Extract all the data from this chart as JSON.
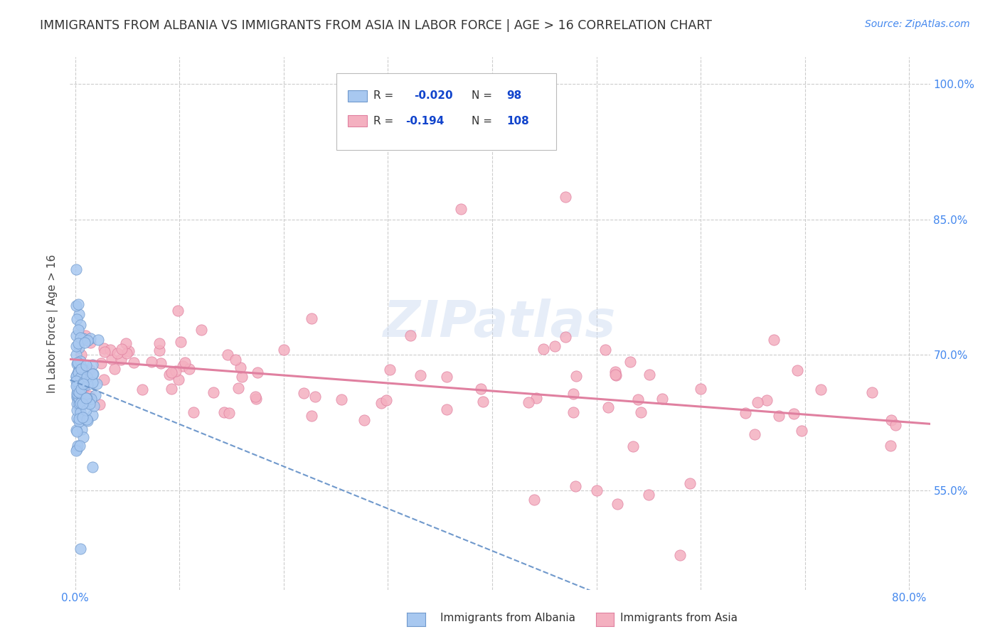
{
  "title": "IMMIGRANTS FROM ALBANIA VS IMMIGRANTS FROM ASIA IN LABOR FORCE | AGE > 16 CORRELATION CHART",
  "source": "Source: ZipAtlas.com",
  "ylabel": "In Labor Force | Age > 16",
  "xlim": [
    -0.005,
    0.82
  ],
  "ylim": [
    0.44,
    1.03
  ],
  "x_tick_pos": [
    0.0,
    0.1,
    0.2,
    0.3,
    0.4,
    0.5,
    0.6,
    0.7,
    0.8
  ],
  "x_tick_labels": [
    "0.0%",
    "",
    "",
    "",
    "",
    "",
    "",
    "",
    "80.0%"
  ],
  "y_tick_pos": [
    0.55,
    0.7,
    0.85,
    1.0
  ],
  "y_tick_labels": [
    "55.0%",
    "70.0%",
    "85.0%",
    "100.0%"
  ],
  "watermark": "ZIPatlas",
  "albania_color": "#a8c8f0",
  "asia_color": "#f4b0c0",
  "albania_edge": "#7099cc",
  "asia_edge": "#e080a0",
  "trendline_albania_color": "#7099cc",
  "trendline_asia_color": "#e080a0",
  "background_color": "#ffffff",
  "grid_color": "#cccccc",
  "title_color": "#333333",
  "axis_label_color": "#4488ee",
  "legend_text_color": "#333333",
  "legend_value_color": "#1144cc"
}
